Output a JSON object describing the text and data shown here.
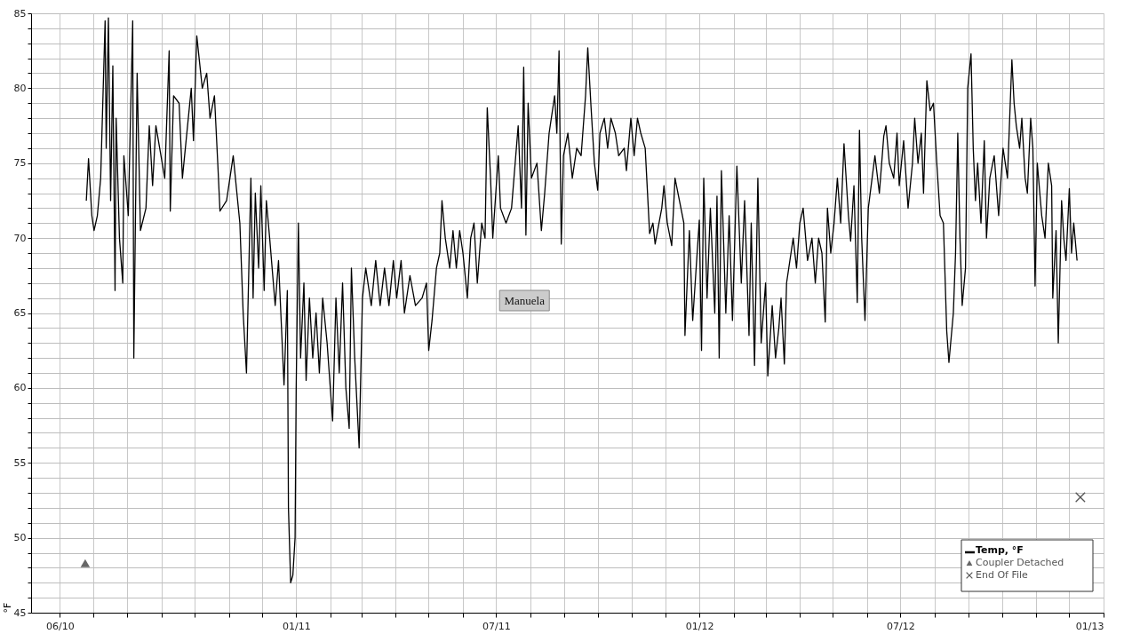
{
  "chart_data": {
    "type": "line",
    "ylabel": "°F",
    "xlim": [
      "2010-05-06",
      "2013-01-01"
    ],
    "ylim": [
      45,
      85
    ],
    "xticks": [
      {
        "value": "2010-06-01",
        "label": "06/10"
      },
      {
        "value": "2010-07-01",
        "label": null
      },
      {
        "value": "2010-08-01",
        "label": null
      },
      {
        "value": "2010-09-01",
        "label": null
      },
      {
        "value": "2010-10-01",
        "label": null
      },
      {
        "value": "2010-11-01",
        "label": null
      },
      {
        "value": "2010-12-01",
        "label": null
      },
      {
        "value": "2011-01-01",
        "label": "01/11"
      },
      {
        "value": "2011-02-01",
        "label": null
      },
      {
        "value": "2011-03-01",
        "label": null
      },
      {
        "value": "2011-04-01",
        "label": null
      },
      {
        "value": "2011-05-01",
        "label": null
      },
      {
        "value": "2011-06-01",
        "label": null
      },
      {
        "value": "2011-07-01",
        "label": "07/11"
      },
      {
        "value": "2011-08-01",
        "label": null
      },
      {
        "value": "2011-09-01",
        "label": null
      },
      {
        "value": "2011-10-01",
        "label": null
      },
      {
        "value": "2011-11-01",
        "label": null
      },
      {
        "value": "2011-12-01",
        "label": null
      },
      {
        "value": "2012-01-01",
        "label": "01/12"
      },
      {
        "value": "2012-02-01",
        "label": null
      },
      {
        "value": "2012-03-01",
        "label": null
      },
      {
        "value": "2012-04-01",
        "label": null
      },
      {
        "value": "2012-05-01",
        "label": null
      },
      {
        "value": "2012-06-01",
        "label": null
      },
      {
        "value": "2012-07-01",
        "label": "07/12"
      },
      {
        "value": "2012-08-01",
        "label": null
      },
      {
        "value": "2012-09-01",
        "label": null
      },
      {
        "value": "2012-10-01",
        "label": null
      },
      {
        "value": "2012-11-01",
        "label": null
      },
      {
        "value": "2012-12-01",
        "label": null
      },
      {
        "value": "2013-01-01",
        "label": "01/13"
      }
    ],
    "yticks": [
      45,
      {
        "value": 46,
        "label": null
      },
      {
        "value": 47,
        "label": null
      },
      {
        "value": 48,
        "label": null
      },
      {
        "value": 49,
        "label": null
      },
      50,
      {
        "value": 51,
        "label": null
      },
      {
        "value": 52,
        "label": null
      },
      {
        "value": 53,
        "label": null
      },
      {
        "value": 54,
        "label": null
      },
      55,
      {
        "value": 56,
        "label": null
      },
      {
        "value": 57,
        "label": null
      },
      {
        "value": 58,
        "label": null
      },
      {
        "value": 59,
        "label": null
      },
      60,
      {
        "value": 61,
        "label": null
      },
      {
        "value": 62,
        "label": null
      },
      {
        "value": 63,
        "label": null
      },
      {
        "value": 64,
        "label": null
      },
      65,
      {
        "value": 66,
        "label": null
      },
      {
        "value": 67,
        "label": null
      },
      {
        "value": 68,
        "label": null
      },
      {
        "value": 69,
        "label": null
      },
      70,
      {
        "value": 71,
        "label": null
      },
      {
        "value": 72,
        "label": null
      },
      {
        "value": 73,
        "label": null
      },
      {
        "value": 74,
        "label": null
      },
      75,
      {
        "value": 76,
        "label": null
      },
      {
        "value": 77,
        "label": null
      },
      {
        "value": 78,
        "label": null
      },
      {
        "value": 79,
        "label": null
      },
      80,
      {
        "value": 81,
        "label": null
      },
      {
        "value": 82,
        "label": null
      },
      {
        "value": 83,
        "label": null
      },
      {
        "value": 84,
        "label": null
      },
      85
    ],
    "grid": true,
    "legend": "bottom right",
    "line_style": "solid",
    "annotations": [
      "Manuela"
    ],
    "series": [
      {
        "name": "Temp, °F",
        "color": "#000000",
        "x": [
          "2010-06-25",
          "2010-06-27",
          "2010-06-30",
          "2010-07-02",
          "2010-07-05",
          "2010-07-08",
          "2010-07-12",
          "2010-07-13",
          "2010-07-15",
          "2010-07-17",
          "2010-07-19",
          "2010-07-21",
          "2010-07-22",
          "2010-07-25",
          "2010-07-28",
          "2010-07-29",
          "2010-08-02",
          "2010-08-06",
          "2010-08-07",
          "2010-08-10",
          "2010-08-13",
          "2010-08-18",
          "2010-08-21",
          "2010-08-24",
          "2010-08-27",
          "2010-09-04",
          "2010-09-08",
          "2010-09-09",
          "2010-09-12",
          "2010-09-17",
          "2010-09-20",
          "2010-09-28",
          "2010-09-30",
          "2010-10-03",
          "2010-10-08",
          "2010-10-12",
          "2010-10-15",
          "2010-10-19",
          "2010-10-22",
          "2010-10-24",
          "2010-10-30",
          "2010-11-05",
          "2010-11-11",
          "2010-11-14",
          "2010-11-17",
          "2010-11-21",
          "2010-11-23",
          "2010-11-25",
          "2010-11-28",
          "2010-11-30",
          "2010-12-03",
          "2010-12-05",
          "2010-12-08",
          "2010-12-13",
          "2010-12-16",
          "2010-12-21",
          "2010-12-24",
          "2010-12-25",
          "2010-12-27",
          "2010-12-29",
          "2010-12-31",
          "2011-01-01",
          "2011-01-03",
          "2011-01-05",
          "2011-01-08",
          "2011-01-10",
          "2011-01-13",
          "2011-01-16",
          "2011-01-19",
          "2011-01-22",
          "2011-01-25",
          "2011-01-29",
          "2011-02-03",
          "2011-02-06",
          "2011-02-09",
          "2011-02-12",
          "2011-02-15",
          "2011-02-18",
          "2011-02-20",
          "2011-02-23",
          "2011-02-27",
          "2011-03-02",
          "2011-03-05",
          "2011-03-10",
          "2011-03-14",
          "2011-03-18",
          "2011-03-22",
          "2011-03-26",
          "2011-03-30",
          "2011-04-02",
          "2011-04-06",
          "2011-04-09",
          "2011-04-14",
          "2011-04-19",
          "2011-04-25",
          "2011-04-29",
          "2011-05-01",
          "2011-05-04",
          "2011-05-08",
          "2011-05-11",
          "2011-05-13",
          "2011-05-16",
          "2011-05-20",
          "2011-05-23",
          "2011-05-26",
          "2011-05-29",
          "2011-06-01",
          "2011-06-05",
          "2011-06-08",
          "2011-06-11",
          "2011-06-14",
          "2011-06-18",
          "2011-06-21",
          "2011-06-23",
          "2011-06-26",
          "2011-06-28",
          "2011-07-03",
          "2011-07-05",
          "2011-07-10",
          "2011-07-15",
          "2011-07-21",
          "2011-07-24",
          "2011-07-26",
          "2011-07-28",
          "2011-07-30",
          "2011-08-02",
          "2011-08-07",
          "2011-08-11",
          "2011-08-14",
          "2011-08-18",
          "2011-08-23",
          "2011-08-25",
          "2011-08-27",
          "2011-08-29",
          "2011-08-31",
          "2011-09-04",
          "2011-09-08",
          "2011-09-12",
          "2011-09-16",
          "2011-09-20",
          "2011-09-22",
          "2011-09-25",
          "2011-09-28",
          "2011-10-01",
          "2011-10-03",
          "2011-10-07",
          "2011-10-10",
          "2011-10-13",
          "2011-10-17",
          "2011-10-20",
          "2011-10-25",
          "2011-10-27",
          "2011-10-31",
          "2011-11-03",
          "2011-11-06",
          "2011-11-09",
          "2011-11-13",
          "2011-11-17",
          "2011-11-20",
          "2011-11-22",
          "2011-11-28",
          "2011-11-30",
          "2011-12-03",
          "2011-12-07",
          "2011-12-10",
          "2011-12-14",
          "2011-12-18",
          "2011-12-19",
          "2011-12-23",
          "2011-12-26",
          "2012-01-01",
          "2012-01-03",
          "2012-01-05",
          "2012-01-08",
          "2012-01-11",
          "2012-01-15",
          "2012-01-17",
          "2012-01-19",
          "2012-01-21",
          "2012-01-25",
          "2012-01-28",
          "2012-01-31",
          "2012-02-04",
          "2012-02-08",
          "2012-02-11",
          "2012-02-15",
          "2012-02-17",
          "2012-02-20",
          "2012-02-23",
          "2012-02-26",
          "2012-03-01",
          "2012-03-03",
          "2012-03-07",
          "2012-03-10",
          "2012-03-13",
          "2012-03-15",
          "2012-03-18",
          "2012-03-20",
          "2012-03-26",
          "2012-03-29",
          "2012-04-01",
          "2012-04-04",
          "2012-04-08",
          "2012-04-12",
          "2012-04-15",
          "2012-04-18",
          "2012-04-21",
          "2012-04-24",
          "2012-04-26",
          "2012-04-29",
          "2012-05-02",
          "2012-05-05",
          "2012-05-08",
          "2012-05-11",
          "2012-05-15",
          "2012-05-17",
          "2012-05-20",
          "2012-05-23",
          "2012-05-25",
          "2012-05-27",
          "2012-05-30",
          "2012-06-02",
          "2012-06-08",
          "2012-06-12",
          "2012-06-16",
          "2012-06-18",
          "2012-06-21",
          "2012-06-25",
          "2012-06-28",
          "2012-06-30",
          "2012-07-04",
          "2012-07-08",
          "2012-07-12",
          "2012-07-14",
          "2012-07-17",
          "2012-07-20",
          "2012-07-22",
          "2012-07-25",
          "2012-07-28",
          "2012-07-31",
          "2012-08-03",
          "2012-08-06",
          "2012-08-09",
          "2012-08-12",
          "2012-08-14",
          "2012-08-18",
          "2012-08-20",
          "2012-08-22",
          "2012-08-24",
          "2012-08-26",
          "2012-08-29",
          "2012-08-31",
          "2012-09-03",
          "2012-09-05",
          "2012-09-07",
          "2012-09-09",
          "2012-09-12",
          "2012-09-15",
          "2012-09-17",
          "2012-09-20",
          "2012-09-24",
          "2012-09-28",
          "2012-10-02",
          "2012-10-06",
          "2012-10-08",
          "2012-10-10",
          "2012-10-12",
          "2012-10-14",
          "2012-10-17",
          "2012-10-19",
          "2012-10-22",
          "2012-10-24",
          "2012-10-27",
          "2012-10-29",
          "2012-10-31",
          "2012-11-02",
          "2012-11-06",
          "2012-11-09",
          "2012-11-12",
          "2012-11-15",
          "2012-11-16",
          "2012-11-19",
          "2012-11-21",
          "2012-11-24",
          "2012-11-26",
          "2012-11-28",
          "2012-12-01",
          "2012-12-03",
          "2012-12-05",
          "2012-12-08"
        ],
        "values": [
          72.5,
          75.3,
          71.5,
          70.5,
          71.5,
          74,
          84.5,
          76,
          84.7,
          72.5,
          81.5,
          66.5,
          78,
          70,
          67,
          75.5,
          71.5,
          84.5,
          62,
          81,
          70.5,
          72,
          77.5,
          73.5,
          77.5,
          74,
          82.5,
          71.8,
          79.5,
          79,
          74,
          80,
          76.5,
          83.5,
          80,
          81,
          78,
          79.5,
          75,
          71.8,
          72.5,
          75.5,
          71,
          65,
          61,
          74,
          66,
          73,
          68,
          73.5,
          66.5,
          72.5,
          70,
          65.5,
          68.5,
          60.2,
          66.5,
          52,
          47,
          47.5,
          50,
          60,
          71,
          62,
          67,
          60.5,
          66,
          62,
          65,
          61,
          66,
          63,
          57.8,
          66,
          61,
          67,
          60,
          57.3,
          68,
          62,
          56,
          66,
          68,
          65.5,
          68.5,
          65.5,
          68,
          65.5,
          68.5,
          66,
          68.5,
          65,
          67.5,
          65.5,
          66,
          67,
          62.5,
          64.5,
          68,
          69,
          72.5,
          70,
          68,
          70.5,
          68,
          70.5,
          69,
          66,
          70,
          71,
          67,
          71,
          70,
          78.7,
          74,
          70,
          75.5,
          72,
          71,
          72,
          77.5,
          72,
          81.4,
          70.2,
          79,
          74,
          75,
          70.5,
          73,
          77,
          79.5,
          77,
          82.5,
          69.6,
          75.5,
          77,
          74,
          76,
          75.5,
          79.5,
          82.7,
          78.7,
          75,
          73.2,
          77,
          78,
          76,
          78,
          77,
          75.5,
          76,
          74.5,
          78,
          75.5,
          78,
          77,
          76,
          70.3,
          71,
          69.6,
          72,
          73.5,
          71,
          69.5,
          74,
          72.5,
          71,
          63.5,
          70.5,
          64.5,
          71.2,
          62.5,
          74,
          66,
          72,
          65,
          72.8,
          62,
          74.5,
          65,
          71.5,
          64.5,
          74.8,
          67,
          72.5,
          63.5,
          71,
          61.5,
          74,
          63,
          67,
          60.8,
          65.5,
          62,
          64,
          66,
          61.6,
          67,
          70,
          68,
          71,
          72,
          68.5,
          70,
          67,
          70,
          69,
          64.4,
          72,
          69,
          71,
          74,
          71,
          76.3,
          71.5,
          69.8,
          73.5,
          65.7,
          77.2,
          70,
          64.5,
          72,
          75.5,
          73,
          76.8,
          77.5,
          75,
          74,
          77,
          73.5,
          76.5,
          72,
          75,
          78,
          75,
          77,
          73,
          80.5,
          78.5,
          79,
          75,
          71.5,
          71,
          63.8,
          61.7,
          65,
          69,
          77,
          70,
          65.5,
          68,
          80,
          82.3,
          76,
          72.5,
          75,
          71,
          76.5,
          70,
          74,
          75.5,
          71.5,
          76,
          74,
          78,
          81.9,
          79,
          77.5,
          76,
          78,
          74,
          73,
          78,
          76,
          66.8,
          75,
          71.5,
          70,
          75,
          73.5,
          66,
          70.5,
          63,
          72.5,
          70,
          68.5,
          73.3,
          69,
          71,
          68.5
        ]
      },
      {
        "name": "Coupler Detached",
        "type": "scatter",
        "marker": "triangle",
        "color": "#666666",
        "x": [
          "2010-06-24"
        ],
        "values": [
          48.3
        ]
      },
      {
        "name": "End Of File",
        "type": "scatter",
        "marker": "cross",
        "color": "#555555",
        "x": [
          "2012-12-11"
        ],
        "values": [
          52.7
        ]
      }
    ]
  }
}
